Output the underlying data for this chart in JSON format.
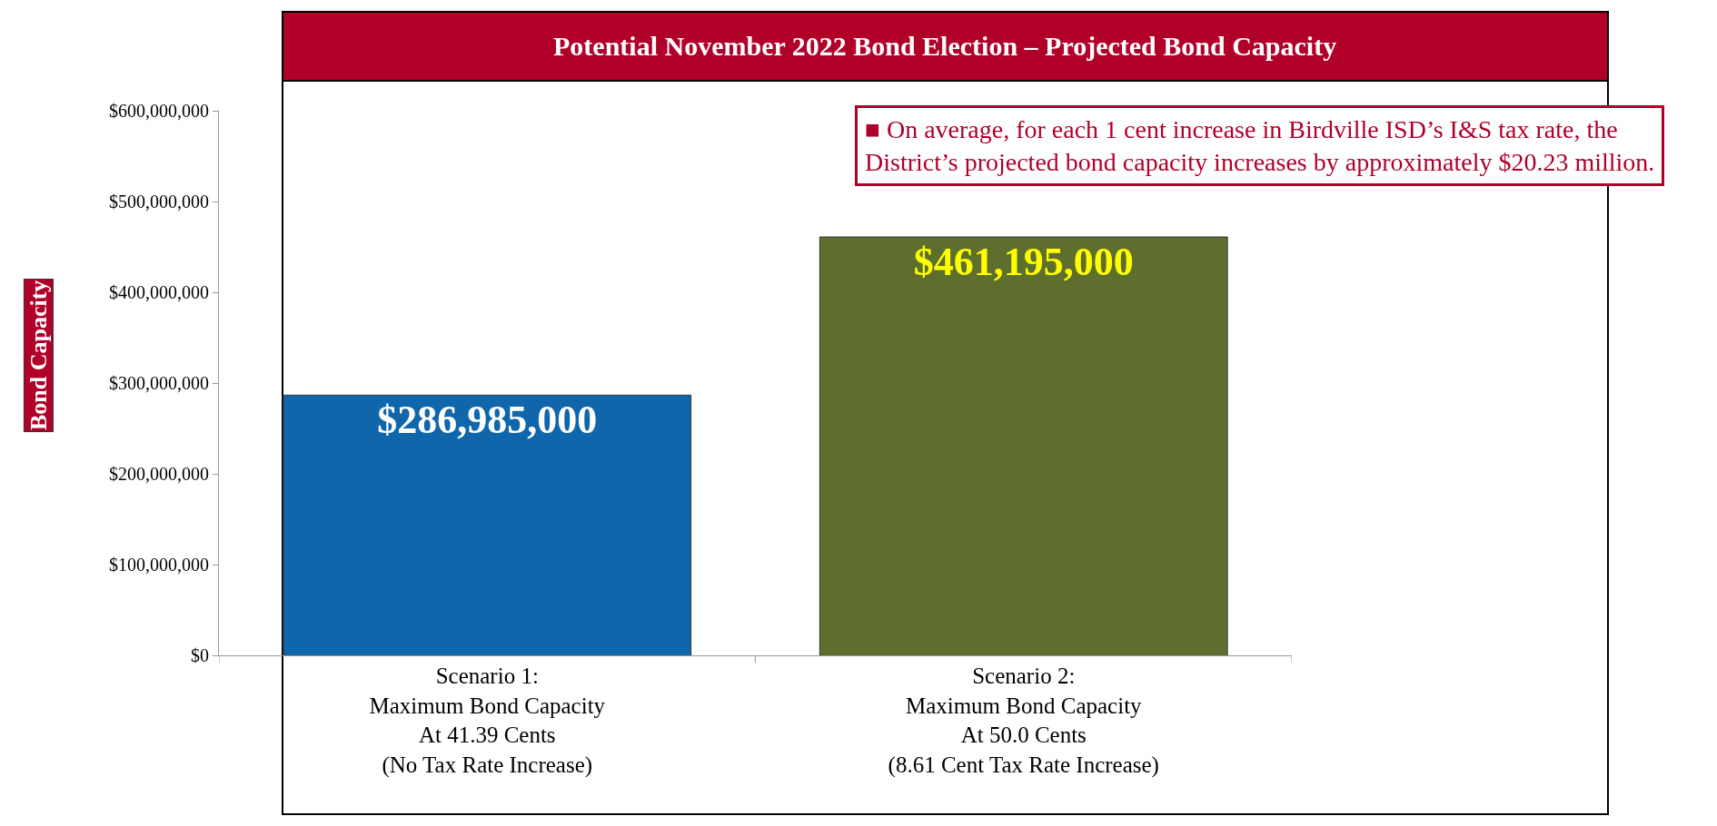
{
  "chart_data": {
    "type": "bar",
    "title": "Potential November 2022 Bond Election – Projected Bond Capacity",
    "ylabel": "Bond Capacity",
    "categories": [
      "Scenario 1:\nMaximum Bond Capacity\nAt 41.39 Cents\n(No Tax Rate Increase)",
      "Scenario 2:\nMaximum Bond Capacity\nAt 50.0 Cents\n(8.61 Cent Tax Rate Increase)"
    ],
    "values": [
      286985000,
      461195000
    ],
    "colors": [
      "#1066ab",
      "#5e6e2c"
    ],
    "value_labels": [
      "$286,985,000",
      "$461,195,000"
    ],
    "ylim": [
      0,
      600000000
    ],
    "yticks": [
      {
        "value": 0,
        "label": "$0"
      },
      {
        "value": 100000000,
        "label": "$100,000,000"
      },
      {
        "value": 200000000,
        "label": "$200,000,000"
      },
      {
        "value": 300000000,
        "label": "$300,000,000"
      },
      {
        "value": 400000000,
        "label": "$400,000,000"
      },
      {
        "value": 500000000,
        "label": "$500,000,000"
      },
      {
        "value": 600000000,
        "label": "$600,000,000"
      }
    ],
    "grid": false,
    "legend": false,
    "annotations": [
      "■ On average, for each 1 cent increase in Birdville ISD’s I&S tax rate, the\nDistrict’s projected bond capacity increases by approximately $20.23 million."
    ]
  }
}
